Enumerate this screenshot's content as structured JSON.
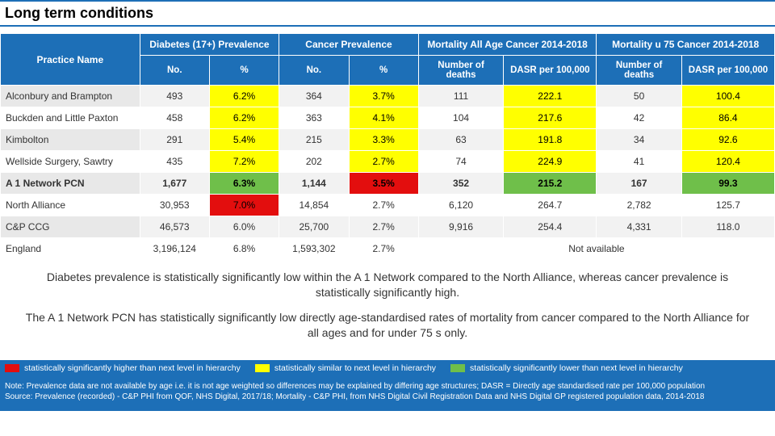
{
  "title": "Long term conditions",
  "table": {
    "header_practice": "Practice Name",
    "groups": [
      "Diabetes (17+) Prevalence",
      "Cancer Prevalence",
      "Mortality All Age Cancer 2014-2018",
      "Mortality u 75 Cancer 2014-2018"
    ],
    "sub_headers_prev": [
      "No.",
      "%"
    ],
    "sub_headers_mort": [
      "Number of deaths",
      "DASR per 100,000"
    ],
    "rows": [
      {
        "name": "Alconbury and Brampton",
        "c": [
          {
            "v": "493"
          },
          {
            "v": "6.2%",
            "h": "yellow"
          },
          {
            "v": "364"
          },
          {
            "v": "3.7%",
            "h": "yellow"
          },
          {
            "v": "111"
          },
          {
            "v": "222.1",
            "h": "yellow"
          },
          {
            "v": "50"
          },
          {
            "v": "100.4",
            "h": "yellow"
          }
        ]
      },
      {
        "name": "Buckden and Little Paxton",
        "c": [
          {
            "v": "458"
          },
          {
            "v": "6.2%",
            "h": "yellow"
          },
          {
            "v": "363"
          },
          {
            "v": "4.1%",
            "h": "yellow"
          },
          {
            "v": "104"
          },
          {
            "v": "217.6",
            "h": "yellow"
          },
          {
            "v": "42"
          },
          {
            "v": "86.4",
            "h": "yellow"
          }
        ]
      },
      {
        "name": "Kimbolton",
        "c": [
          {
            "v": "291"
          },
          {
            "v": "5.4%",
            "h": "yellow"
          },
          {
            "v": "215"
          },
          {
            "v": "3.3%",
            "h": "yellow"
          },
          {
            "v": "63"
          },
          {
            "v": "191.8",
            "h": "yellow"
          },
          {
            "v": "34"
          },
          {
            "v": "92.6",
            "h": "yellow"
          }
        ]
      },
      {
        "name": "Wellside Surgery, Sawtry",
        "c": [
          {
            "v": "435"
          },
          {
            "v": "7.2%",
            "h": "yellow"
          },
          {
            "v": "202"
          },
          {
            "v": "2.7%",
            "h": "yellow"
          },
          {
            "v": "74"
          },
          {
            "v": "224.9",
            "h": "yellow"
          },
          {
            "v": "41"
          },
          {
            "v": "120.4",
            "h": "yellow"
          }
        ]
      },
      {
        "name": "A 1 Network PCN",
        "pcn": true,
        "c": [
          {
            "v": "1,677"
          },
          {
            "v": "6.3%",
            "h": "green"
          },
          {
            "v": "1,144"
          },
          {
            "v": "3.5%",
            "h": "red"
          },
          {
            "v": "352"
          },
          {
            "v": "215.2",
            "h": "green"
          },
          {
            "v": "167"
          },
          {
            "v": "99.3",
            "h": "green"
          }
        ]
      },
      {
        "name": "North Alliance",
        "c": [
          {
            "v": "30,953"
          },
          {
            "v": "7.0%",
            "h": "red"
          },
          {
            "v": "14,854"
          },
          {
            "v": "2.7%"
          },
          {
            "v": "6,120"
          },
          {
            "v": "264.7"
          },
          {
            "v": "2,782"
          },
          {
            "v": "125.7"
          }
        ]
      },
      {
        "name": "C&P CCG",
        "c": [
          {
            "v": "46,573"
          },
          {
            "v": "6.0%"
          },
          {
            "v": "25,700"
          },
          {
            "v": "2.7%"
          },
          {
            "v": "9,916"
          },
          {
            "v": "254.4"
          },
          {
            "v": "4,331"
          },
          {
            "v": "118.0"
          }
        ]
      },
      {
        "name": "England",
        "c": [
          {
            "v": "3,196,124"
          },
          {
            "v": "6.8%"
          },
          {
            "v": "1,593,302"
          },
          {
            "v": "2.7%"
          },
          {
            "v": "Not available",
            "span": 4
          }
        ]
      }
    ]
  },
  "commentary": {
    "p1": "Diabetes prevalence is statistically significantly low within the A 1 Network compared to the North Alliance, whereas cancer prevalence is statistically significantly high.",
    "p2": "The A 1 Network PCN has statistically significantly low directly age-standardised rates of mortality from cancer compared to the North Alliance for all ages and for under 75 s only."
  },
  "legend": {
    "items": [
      {
        "color": "#e30e0e",
        "label": "statistically significantly higher than next level in hierarchy"
      },
      {
        "color": "#ffff00",
        "label": "statistically similar to next level in hierarchy"
      },
      {
        "color": "#6fbf4a",
        "label": "statistically significantly lower than next level in hierarchy"
      }
    ]
  },
  "footnote": {
    "note": "Note:  Prevalence data are not available by age i.e. it is not age weighted so differences may be explained by differing age structures; DASR = Directly age standardised rate per 100,000 population",
    "source": "Source: Prevalence (recorded) - C&P PHI from QOF, NHS Digital, 2017/18; Mortality - C&P PHI, from NHS Digital Civil Registration Data and NHS Digital GP registered population data, 2014-2018"
  },
  "colors": {
    "header_bg": "#1d6fb7",
    "red": "#e30e0e",
    "yellow": "#ffff00",
    "green": "#6fbf4a"
  },
  "col_widths": [
    "18%",
    "9%",
    "9%",
    "9%",
    "9%",
    "11%",
    "12%",
    "11%",
    "12%"
  ]
}
